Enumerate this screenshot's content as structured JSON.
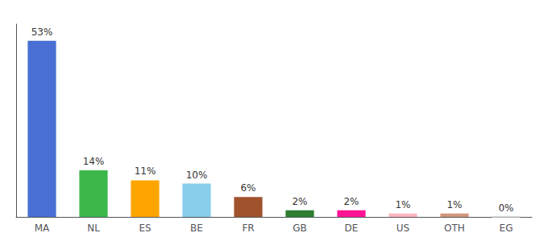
{
  "chart_data": {
    "type": "bar",
    "categories": [
      "MA",
      "NL",
      "ES",
      "BE",
      "FR",
      "GB",
      "DE",
      "US",
      "OTH",
      "EG"
    ],
    "values": [
      53,
      14,
      11,
      10,
      6,
      2,
      2,
      1,
      1,
      0
    ],
    "value_labels": [
      "53%",
      "14%",
      "11%",
      "10%",
      "6%",
      "2%",
      "2%",
      "1%",
      "1%",
      "0%"
    ],
    "colors": [
      "#4A6FD4",
      "#3CB84A",
      "#FFA500",
      "#87CEEB",
      "#A0522D",
      "#2E7D32",
      "#FF1493",
      "#FFB6C1",
      "#D4967A",
      "#FFFFFF"
    ],
    "ylim": [
      0,
      58
    ],
    "data_labels": true,
    "tick_labels": "x",
    "grid": false
  }
}
